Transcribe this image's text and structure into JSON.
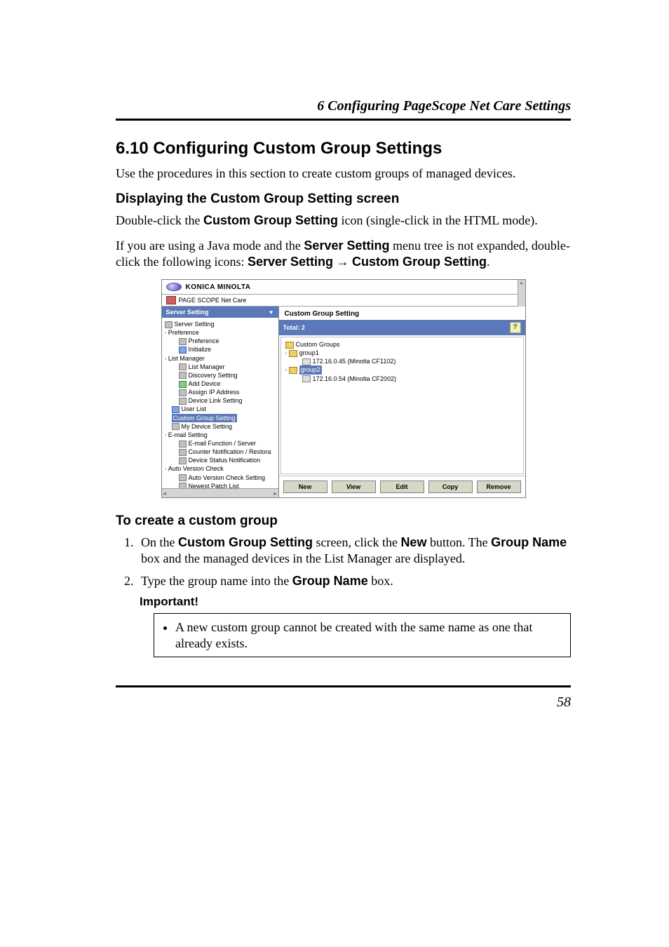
{
  "running_head": "6  Configuring PageScope Net Care Settings",
  "h2": "6.10 Configuring Custom Group Settings",
  "intro": "Use the procedures in this section to create custom groups of managed devices.",
  "sub1": "Displaying the Custom Group Setting screen",
  "p1a": "Double-click the ",
  "p1b": "Custom Group Setting",
  "p1c": " icon (single-click in the HTML mode).",
  "p2a": "If you are using a Java mode and the ",
  "p2b": "Server Setting",
  "p2c": " menu tree is not expanded, double-click the following icons: ",
  "p2d": "Server Setting",
  "p2e": " → ",
  "p2f": "Custom Group Setting",
  "p2g": ".",
  "sub2": "To create a custom group",
  "step1a": "On the ",
  "step1b": "Custom Group Setting",
  "step1c": " screen, click the ",
  "step1d": "New",
  "step1e": " button. The ",
  "step1f": "Group Name",
  "step1g": " box and the managed devices in the List Manager are displayed.",
  "step2a": "Type the group name into the ",
  "step2b": "Group Name",
  "step2c": " box.",
  "important_label": "Important!",
  "important_text": "A new custom group cannot be created with the same name as one that already exists.",
  "page_number": "58",
  "screenshot": {
    "brand": "KONICA MINOLTA",
    "product": "PAGE SCOPE Net Care",
    "left_header": "Server Setting",
    "left_tree": [
      {
        "lvl": 0,
        "ico": "gray",
        "txt": "Server Setting"
      },
      {
        "lvl": 0,
        "handle": "◦",
        "ico": "",
        "txt": "Preference"
      },
      {
        "lvl": 2,
        "ico": "gray",
        "txt": "Preference"
      },
      {
        "lvl": 2,
        "ico": "blue",
        "txt": "Initialize"
      },
      {
        "lvl": 0,
        "handle": "◦",
        "ico": "",
        "txt": "List Manager"
      },
      {
        "lvl": 2,
        "ico": "gray",
        "txt": "List Manager"
      },
      {
        "lvl": 2,
        "ico": "gray",
        "txt": "Discovery Setting"
      },
      {
        "lvl": 2,
        "ico": "green",
        "txt": "Add Device"
      },
      {
        "lvl": 2,
        "ico": "gray",
        "txt": "Assign IP Address"
      },
      {
        "lvl": 2,
        "ico": "gray",
        "txt": "Device Link Setting"
      },
      {
        "lvl": 1,
        "ico": "blue",
        "txt": "User List"
      },
      {
        "lvl": 1,
        "ico": "",
        "sel": true,
        "txt": "Custom Group Setting"
      },
      {
        "lvl": 1,
        "ico": "gray",
        "txt": "My Device Setting"
      },
      {
        "lvl": 0,
        "handle": "◦",
        "ico": "",
        "txt": "E-mail Setting"
      },
      {
        "lvl": 2,
        "ico": "gray",
        "txt": "E-mail Function / Server"
      },
      {
        "lvl": 2,
        "ico": "gray",
        "txt": "Counter Notification / Restora"
      },
      {
        "lvl": 2,
        "ico": "gray",
        "txt": "Device Status Notification"
      },
      {
        "lvl": 0,
        "handle": "◦",
        "ico": "",
        "txt": "Auto Version Check"
      },
      {
        "lvl": 2,
        "ico": "gray",
        "txt": "Auto Version Check Setting"
      },
      {
        "lvl": 2,
        "ico": "gray",
        "txt": "Newest Patch List"
      },
      {
        "lvl": 1,
        "ico": "red",
        "txt": "Security Setting"
      },
      {
        "lvl": 1,
        "ico": "green",
        "txt": "Supported Models"
      },
      {
        "lvl": 1,
        "ico": "blue",
        "txt": "Supported Language"
      }
    ],
    "right_title": "Custom Group Setting",
    "right_total": "Total: 2",
    "right_tree": [
      {
        "lvl": 1,
        "ico": "fold",
        "txt": "Custom Groups"
      },
      {
        "lvl": 1,
        "handle": "◦",
        "ico": "fold",
        "txt": "group1"
      },
      {
        "lvl": 3,
        "ico": "prn",
        "txt": "172.16.0.45 (Minolta CF1102)"
      },
      {
        "lvl": 1,
        "handle": "◦",
        "ico": "fold",
        "sel": true,
        "txt": "group2"
      },
      {
        "lvl": 3,
        "ico": "prn",
        "txt": "172.16.0.54 (Minolta CF2002)"
      }
    ],
    "buttons": [
      "New",
      "View",
      "Edit",
      "Copy",
      "Remove"
    ]
  }
}
